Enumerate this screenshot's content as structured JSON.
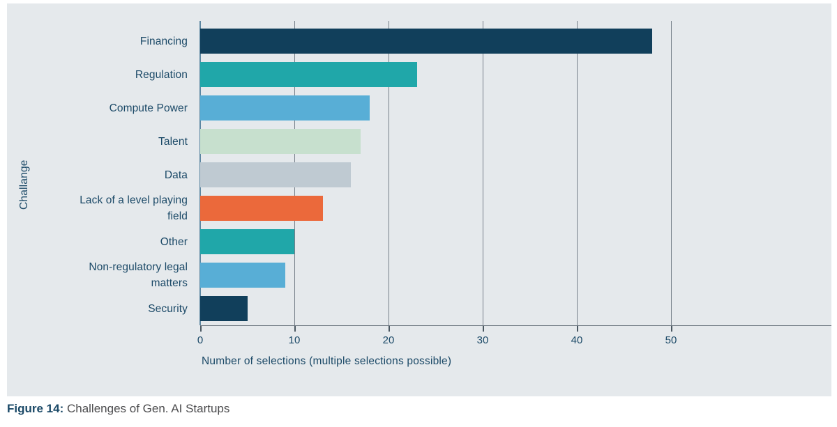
{
  "figure": {
    "label": "Figure 14:",
    "caption": " Challenges of Gen. AI Startups"
  },
  "chart_data": {
    "type": "bar",
    "orientation": "horizontal",
    "categories": [
      "Financing",
      "Regulation",
      "Compute Power",
      "Talent",
      "Data",
      "Lack of a level playing\nfield",
      "Other",
      "Non-regulatory legal\nmatters",
      "Security"
    ],
    "values": [
      48,
      23,
      18,
      17,
      16,
      13,
      10,
      9,
      5
    ],
    "bar_colors": [
      "#113f5b",
      "#20a7a9",
      "#58aed6",
      "#c7e0ce",
      "#bfcad2",
      "#eb693b",
      "#20a7a9",
      "#58aed6",
      "#113f5b"
    ],
    "xlabel": "Number of selections (multiple selections possible)",
    "ylabel": "Challange",
    "xlim": [
      0,
      50
    ],
    "xticks": [
      0,
      10,
      20,
      30,
      40,
      50
    ],
    "grid": "vertical-only",
    "legend": "none",
    "plot_background": "#e5e9ec"
  },
  "colors": {
    "panel_background": "#e5e9ec",
    "page_background": "#ffffff",
    "gridline": "#76808a",
    "axis_spine": "#5d87a2",
    "text": "#1b4967",
    "caption_text": "#4c4c4e"
  }
}
